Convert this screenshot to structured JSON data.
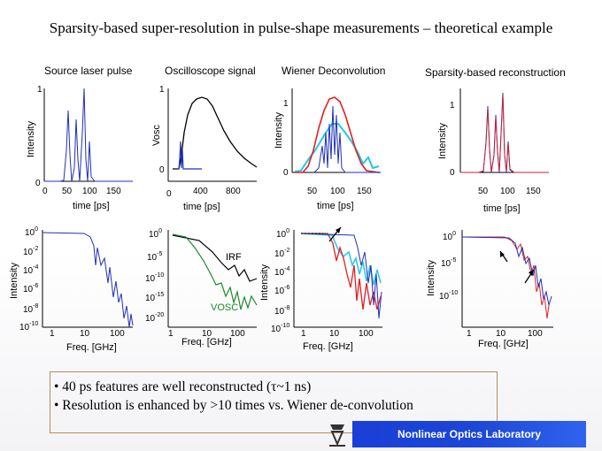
{
  "slide": {
    "title": "Sparsity-based super-resolution in pulse-shape measurements – theoretical example"
  },
  "panels": {
    "source": {
      "title": "Source laser pulse",
      "ylabel": "Intensity",
      "xlabel": "time [ps]",
      "xticks": [
        "0",
        "50",
        "100",
        "150"
      ],
      "yticks": [
        "0",
        "1"
      ]
    },
    "osc": {
      "title": "Oscilloscope signal",
      "ylabel": "Vosc",
      "xlabel": "time [ps]",
      "xticks": [
        "0",
        "400",
        "800"
      ],
      "yticks": [
        "0",
        "1"
      ]
    },
    "wiener": {
      "title": "Wiener Deconvolution",
      "ylabel": "Intensity",
      "xlabel": "time [ps]",
      "xticks": [
        "50",
        "100",
        "150"
      ],
      "yticks": [
        "0",
        "1"
      ]
    },
    "sparse": {
      "title": "Sparsity-based reconstruction",
      "ylabel": "Intensity",
      "xlabel": "time [ps]",
      "xticks": [
        "50",
        "100",
        "150"
      ],
      "yticks": [
        "0",
        "1"
      ]
    }
  },
  "spectra": {
    "xlabel": "Freq. [GHz]",
    "ylabel": "Intensity",
    "xticks": [
      "1",
      "10",
      "100"
    ],
    "source_yticks": [
      "10^0",
      "10^-2",
      "10^-4",
      "10^-6",
      "10^-8",
      "10^-10"
    ],
    "osc_yticks": [
      "10^0",
      "10^-5",
      "10^-10",
      "10^-15",
      "10^-20"
    ],
    "wiener_yticks": [
      "10^0",
      "10^-2",
      "10^-4",
      "10^-6",
      "10^-8",
      "10^-10"
    ],
    "sparse_yticks": [
      "10^0",
      "10^-5",
      "10^-10"
    ],
    "irf_label": "IRF",
    "vosc_label": "VOSC"
  },
  "notes": {
    "line1": "• 40 ps features are well reconstructed (τ~1 ns)",
    "line2": "• Resolution is enhanced by >10 times vs. Wiener de-convolution"
  },
  "footer": {
    "lab": "Nonlinear Optics Laboratory"
  },
  "colors": {
    "blue": "#1f2fb8",
    "red": "#e02020",
    "cyan": "#22c8e8",
    "green": "#1d8a2a",
    "black": "#000000",
    "brand": "#1b46d6"
  }
}
